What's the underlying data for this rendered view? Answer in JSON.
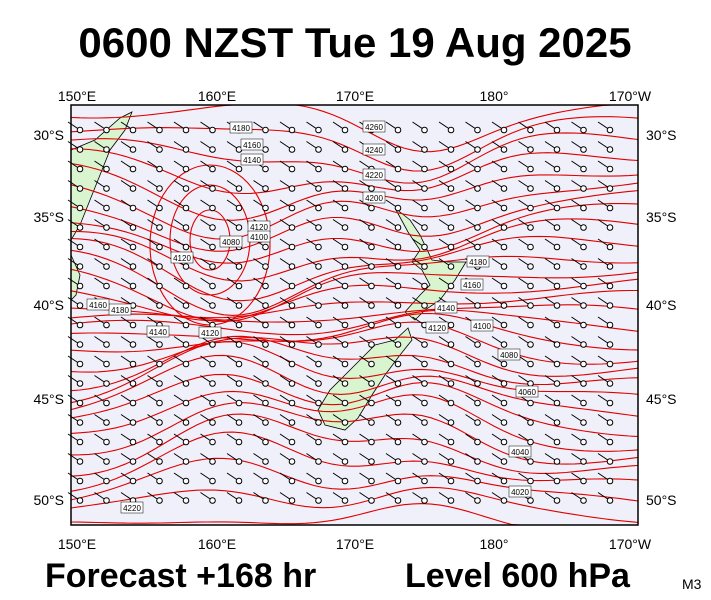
{
  "title": "0600 NZST Tue 19 Aug 2025",
  "map": {
    "lon_labels": [
      "150°E",
      "160°E",
      "170°E",
      "180°",
      "170°W"
    ],
    "lat_labels": [
      "30°S",
      "35°S",
      "40°S",
      "45°S",
      "50°S"
    ],
    "contour_labels": [
      "4180",
      "4160",
      "4140",
      "4260",
      "4240",
      "4220",
      "4200",
      "4120",
      "4100",
      "4080",
      "4120",
      "4180",
      "4160",
      "4140",
      "4120",
      "4180",
      "4160",
      "4140",
      "4120",
      "4100",
      "4080",
      "4060",
      "4040",
      "4020",
      "4220"
    ]
  },
  "footer": {
    "forecast": "Forecast +168 hr",
    "level": "Level 600 hPa",
    "model": "M3"
  }
}
